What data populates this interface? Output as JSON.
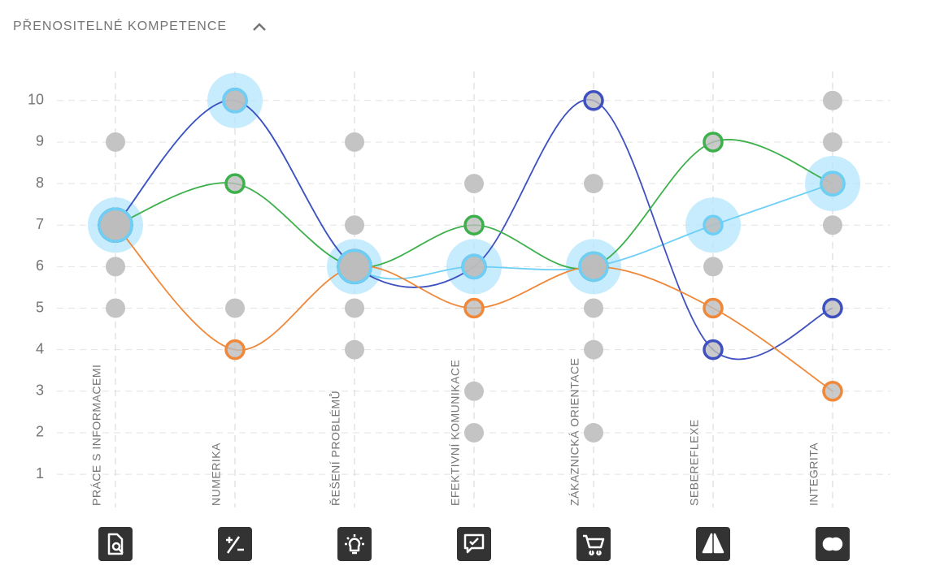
{
  "chart_data": {
    "type": "line",
    "title": "PŘENOSITELNÉ KOMPETENCE",
    "categories": [
      "PRÁCE S INFORMACEMI",
      "NUMERIKA",
      "ŘEŠENÍ PROBLÉMŮ",
      "EFEKTIVNÍ KOMUNIKACE",
      "ZÁKAZNICKÁ ORIENTACE",
      "SEBEREFLEXE",
      "INTEGRITA"
    ],
    "series": [
      {
        "color": "#6ecff6",
        "values": [
          7,
          10,
          6,
          6,
          6,
          7,
          8
        ]
      },
      {
        "color": "#3f51c0",
        "values": [
          7,
          10,
          6,
          6,
          10,
          4,
          5
        ]
      },
      {
        "color": "#3cb04a",
        "values": [
          7,
          8,
          6,
          7,
          6,
          9,
          8
        ]
      },
      {
        "color": "#f0883a",
        "values": [
          7,
          4,
          6,
          5,
          6,
          5,
          3
        ]
      }
    ],
    "others": [
      [
        9,
        6,
        5
      ],
      [
        5
      ],
      [
        9,
        7,
        5,
        4
      ],
      [
        8,
        3,
        2
      ],
      [
        8,
        5,
        4,
        2
      ],
      [
        7,
        6
      ],
      [
        10,
        9,
        7
      ]
    ],
    "ylim": [
      0.2,
      10.7
    ],
    "yticks": [
      1,
      2,
      3,
      4,
      5,
      6,
      7,
      8,
      9,
      10
    ],
    "grid": true
  }
}
